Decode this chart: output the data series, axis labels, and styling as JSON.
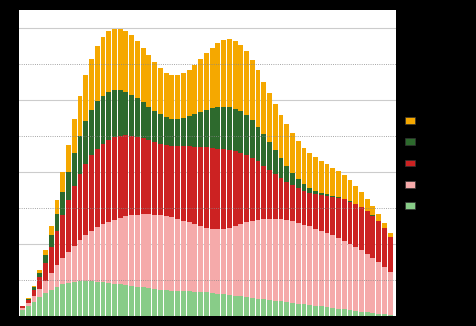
{
  "colors": {
    "orange": "#F5A800",
    "dark_green": "#2D6A2D",
    "red": "#CC2222",
    "light_pink": "#F5AAAA",
    "light_green": "#88CC88"
  },
  "legend_colors": [
    "#F5A800",
    "#2D6A2D",
    "#CC2222",
    "#F5AAAA",
    "#88CC88"
  ],
  "light_green": [
    180,
    280,
    400,
    520,
    640,
    740,
    820,
    880,
    920,
    950,
    970,
    980,
    970,
    960,
    940,
    920,
    900,
    880,
    860,
    840,
    820,
    800,
    780,
    760,
    740,
    720,
    710,
    700,
    695,
    690,
    685,
    680,
    670,
    650,
    630,
    610,
    590,
    570,
    550,
    530,
    510,
    490,
    470,
    450,
    430,
    410,
    390,
    370,
    350,
    330,
    310,
    290,
    270,
    250,
    230,
    210,
    190,
    170,
    150,
    130,
    110,
    90,
    70,
    50,
    35
  ],
  "light_pink": [
    60,
    100,
    160,
    240,
    340,
    460,
    590,
    730,
    870,
    1010,
    1150,
    1280,
    1400,
    1510,
    1610,
    1700,
    1780,
    1850,
    1910,
    1960,
    2000,
    2030,
    2050,
    2060,
    2060,
    2050,
    2030,
    2000,
    1960,
    1910,
    1860,
    1820,
    1790,
    1780,
    1790,
    1820,
    1870,
    1930,
    2000,
    2070,
    2130,
    2180,
    2220,
    2250,
    2270,
    2280,
    2280,
    2260,
    2240,
    2210,
    2180,
    2140,
    2100,
    2060,
    2010,
    1960,
    1900,
    1840,
    1770,
    1700,
    1620,
    1530,
    1430,
    1320,
    1180
  ],
  "red": [
    30,
    80,
    180,
    330,
    510,
    720,
    960,
    1200,
    1430,
    1640,
    1820,
    1970,
    2090,
    2180,
    2240,
    2280,
    2290,
    2280,
    2250,
    2210,
    2160,
    2110,
    2060,
    2020,
    1990,
    1980,
    1990,
    2020,
    2060,
    2110,
    2160,
    2200,
    2230,
    2240,
    2230,
    2200,
    2150,
    2080,
    1990,
    1880,
    1760,
    1630,
    1490,
    1360,
    1240,
    1140,
    1060,
    1000,
    960,
    940,
    940,
    960,
    990,
    1030,
    1070,
    1110,
    1150,
    1170,
    1190,
    1200,
    1190,
    1170,
    1130,
    1070,
    980
  ],
  "dark_green": [
    8,
    25,
    60,
    120,
    210,
    330,
    470,
    630,
    790,
    940,
    1070,
    1180,
    1260,
    1310,
    1330,
    1330,
    1300,
    1260,
    1200,
    1130,
    1060,
    990,
    920,
    860,
    810,
    770,
    750,
    760,
    790,
    840,
    900,
    970,
    1040,
    1100,
    1150,
    1180,
    1190,
    1180,
    1150,
    1100,
    1040,
    960,
    870,
    770,
    660,
    550,
    440,
    340,
    250,
    175,
    120,
    85,
    60,
    45,
    35,
    28,
    22,
    17,
    13,
    10,
    8,
    6,
    4,
    3,
    2
  ],
  "orange": [
    4,
    12,
    32,
    72,
    140,
    240,
    380,
    550,
    730,
    920,
    1100,
    1270,
    1410,
    1530,
    1620,
    1680,
    1710,
    1710,
    1690,
    1650,
    1590,
    1510,
    1430,
    1350,
    1280,
    1230,
    1200,
    1200,
    1230,
    1280,
    1360,
    1460,
    1570,
    1680,
    1780,
    1850,
    1880,
    1880,
    1840,
    1770,
    1680,
    1570,
    1460,
    1360,
    1280,
    1210,
    1150,
    1100,
    1060,
    1020,
    980,
    940,
    890,
    840,
    780,
    720,
    650,
    570,
    490,
    400,
    320,
    250,
    190,
    140,
    100
  ],
  "ylim": [
    0,
    8500
  ],
  "n_bars": 65,
  "age_start": 16
}
